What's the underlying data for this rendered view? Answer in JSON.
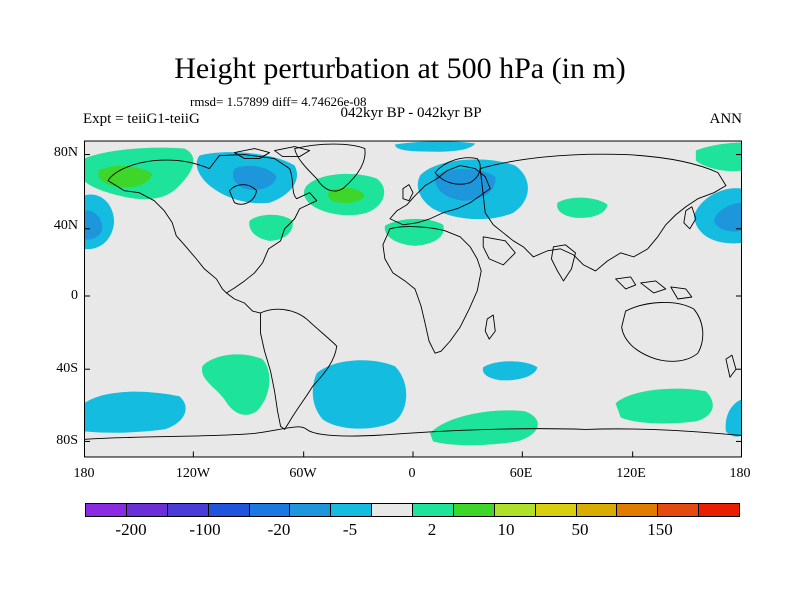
{
  "title": "Height perturbation at 500 hPa (in m)",
  "rmsd_line": "rmsd= 1.57899 diff= 4.74626e-08",
  "subtitle": "042kyr BP - 042kyr BP",
  "expt_label": "Expt = teiiG1-teiiG",
  "season_label": "ANN",
  "map": {
    "projection": "cylindrical equidistant",
    "lon_range": [
      -180,
      180
    ],
    "lat_range": [
      -90,
      90
    ],
    "background_color": "#e8e8e8",
    "coastline_color": "#000000",
    "y_tick_labels": [
      "80N",
      "40N",
      "0",
      "40S",
      "80S"
    ],
    "x_tick_labels": [
      "180",
      "120W",
      "60W",
      "0",
      "60E",
      "120E",
      "180"
    ]
  },
  "chart_data": {
    "type": "heatmap",
    "variable": "Height perturbation at 500 hPa",
    "units": "m",
    "anomaly_regions": [
      {
        "region": "NE Pacific / Alaska",
        "lon": [
          -180,
          -140
        ],
        "lat": [
          60,
          85
        ],
        "level": "10"
      },
      {
        "region": "N Pacific off Siberia",
        "lon": [
          160,
          180
        ],
        "lat": [
          70,
          85
        ],
        "level": "2"
      },
      {
        "region": "Central N Pacific west",
        "lon": [
          -180,
          -165
        ],
        "lat": [
          30,
          55
        ],
        "level": "-5"
      },
      {
        "region": "Central N Pacific east",
        "lon": [
          150,
          180
        ],
        "lat": [
          30,
          60
        ],
        "level": "-5"
      },
      {
        "region": "Canada / Hudson Bay",
        "lon": [
          -120,
          -65
        ],
        "lat": [
          50,
          80
        ],
        "level": "-5"
      },
      {
        "region": "N Atlantic",
        "lon": [
          -55,
          -20
        ],
        "lat": [
          45,
          65
        ],
        "level": "10"
      },
      {
        "region": "US east coast",
        "lon": [
          -85,
          -65
        ],
        "lat": [
          35,
          45
        ],
        "level": "2"
      },
      {
        "region": "Arctic Greenland Sea",
        "lon": [
          -5,
          35
        ],
        "lat": [
          80,
          85
        ],
        "level": "-5"
      },
      {
        "region": "Northern Europe / Scandinavia",
        "lon": [
          0,
          60
        ],
        "lat": [
          40,
          70
        ],
        "level": "-5"
      },
      {
        "region": "Mediterranean",
        "lon": [
          -15,
          25
        ],
        "lat": [
          25,
          45
        ],
        "level": "2"
      },
      {
        "region": "Caspian / Central Asia",
        "lon": [
          80,
          110
        ],
        "lat": [
          40,
          55
        ],
        "level": "2"
      },
      {
        "region": "S Pacific (120W-90W)",
        "lon": [
          -120,
          -70
        ],
        "lat": [
          -65,
          -35
        ],
        "level": "2"
      },
      {
        "region": "S Pacific (180-140W)",
        "lon": [
          -180,
          -140
        ],
        "lat": [
          -75,
          -55
        ],
        "level": "-5"
      },
      {
        "region": "S Atlantic",
        "lon": [
          -55,
          0
        ],
        "lat": [
          -75,
          -40
        ],
        "level": "-5"
      },
      {
        "region": "S Indian (40E-60E)",
        "lon": [
          40,
          70
        ],
        "lat": [
          -45,
          -40
        ],
        "level": "-5"
      },
      {
        "region": "Southern Ocean (10E-70E)",
        "lon": [
          10,
          70
        ],
        "lat": [
          -80,
          -65
        ],
        "level": "2"
      },
      {
        "region": "Southern Ocean (120E-160E)",
        "lon": [
          115,
          170
        ],
        "lat": [
          -70,
          -55
        ],
        "level": "2"
      },
      {
        "region": "S Pacific (170E-180)",
        "lon": [
          165,
          180
        ],
        "lat": [
          -80,
          -60
        ],
        "level": "-5"
      }
    ]
  },
  "colorbar": {
    "colors": [
      "#8a2be2",
      "#6a2fd6",
      "#4a3cd6",
      "#1f55dc",
      "#1a78e0",
      "#1e96dc",
      "#14bde0",
      "#e8e8e8",
      "#1ee39a",
      "#3ed628",
      "#aee22a",
      "#d8cf0e",
      "#d8ad00",
      "#e07c00",
      "#e44a10",
      "#e82000"
    ],
    "labels": [
      "-200",
      "-100",
      "-20",
      "-5",
      "2",
      "10",
      "50",
      "150"
    ]
  }
}
